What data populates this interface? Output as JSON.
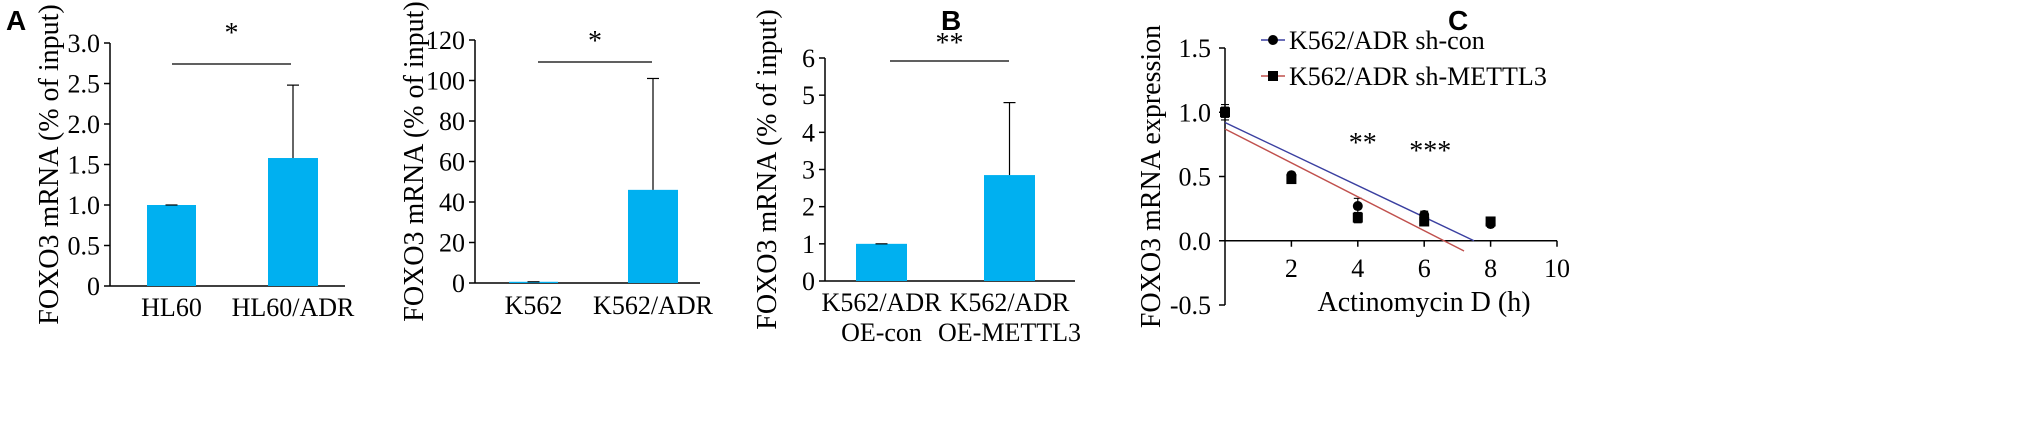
{
  "colors": {
    "bar": "#00b0f0",
    "sh_con_line": "#3a3fa0",
    "sh_mettl3_line": "#c0504d",
    "axis": "#000000"
  },
  "chart_data": [
    {
      "panel": "A",
      "type": "bar",
      "ylabel": "FOXO3 mRNA (% of input)",
      "yticks": [
        "0",
        "0.5",
        "1.0",
        "1.5",
        "2.0",
        "2.5",
        "3.0"
      ],
      "ylim": [
        0,
        3.0
      ],
      "categories": [
        [
          "HL60"
        ],
        [
          "HL60/ADR"
        ]
      ],
      "values": [
        1.0,
        1.58
      ],
      "errors": [
        0.0,
        0.9
      ],
      "significance": "*"
    },
    {
      "panel": "",
      "type": "bar",
      "ylabel": "FOXO3 mRNA (% of input)",
      "yticks": [
        "0",
        "20",
        "40",
        "60",
        "80",
        "100",
        "120"
      ],
      "ylim": [
        0,
        120
      ],
      "categories": [
        [
          "K562"
        ],
        [
          "K562/ADR"
        ]
      ],
      "values": [
        0.6,
        46
      ],
      "errors": [
        0.0,
        55
      ],
      "significance": "*"
    },
    {
      "panel": "B",
      "type": "bar",
      "ylabel": "FOXO3 mRNA (% of input)",
      "yticks": [
        "0",
        "1",
        "2",
        "3",
        "4",
        "5",
        "6"
      ],
      "ylim": [
        0,
        6
      ],
      "categories": [
        [
          "K562/ADR",
          "OE-con"
        ],
        [
          "K562/ADR",
          "OE-METTL3"
        ]
      ],
      "values": [
        1.0,
        2.85
      ],
      "errors": [
        0.0,
        1.95
      ],
      "significance": "**"
    },
    {
      "panel": "C",
      "type": "scatter",
      "ylabel": "FOXO3 mRNA expression",
      "xlabel": "Actinomycin D (h)",
      "yticks": [
        "-0.5",
        "0.0",
        "0.5",
        "1.0",
        "1.5"
      ],
      "ylim": [
        -0.5,
        1.5
      ],
      "xticks": [
        "2",
        "4",
        "6",
        "8",
        "10"
      ],
      "xlim": [
        0,
        10
      ],
      "series": [
        {
          "name": "K562/ADR sh-con",
          "marker": "circle",
          "x": [
            0,
            2,
            4,
            6,
            8
          ],
          "y": [
            1.0,
            0.51,
            0.27,
            0.2,
            0.13
          ],
          "errors": [
            0.06,
            0.0,
            0.06,
            0.03,
            0.0
          ],
          "fit": [
            [
              0,
              0.92
            ],
            [
              7.5,
              0.0
            ]
          ]
        },
        {
          "name": "K562/ADR sh-METTL3",
          "marker": "square",
          "x": [
            0,
            2,
            4,
            6,
            8
          ],
          "y": [
            1.0,
            0.48,
            0.18,
            0.15,
            0.15
          ],
          "errors": [
            0.04,
            0.0,
            0.04,
            0.02,
            0.0
          ],
          "fit": [
            [
              0,
              0.87
            ],
            [
              7.2,
              -0.08
            ]
          ]
        }
      ],
      "annotations": [
        {
          "text": "**",
          "x": 4
        },
        {
          "text": "***",
          "x": 6
        }
      ]
    }
  ]
}
